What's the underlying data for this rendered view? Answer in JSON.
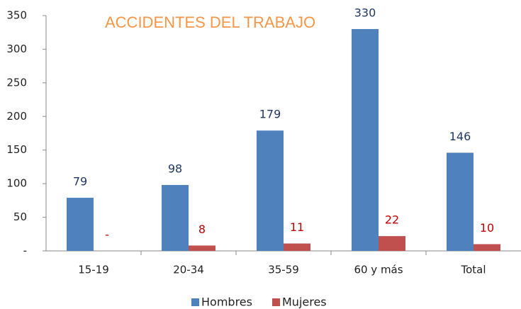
{
  "chart_data": {
    "type": "bar",
    "title": "ACCIDENTES DEL TRABAJO",
    "categories": [
      "15-19",
      "20-34",
      "35-59",
      "60 y más",
      "Total"
    ],
    "series": [
      {
        "name": "Hombres",
        "color": "#4f81bd",
        "values": [
          79,
          98,
          179,
          330,
          146
        ]
      },
      {
        "name": "Mujeres",
        "color": "#c0504d",
        "values": [
          0,
          8,
          11,
          22,
          10
        ],
        "value_labels": [
          "-",
          "8",
          "11",
          "22",
          "10"
        ]
      }
    ],
    "ylim": [
      0,
      350
    ],
    "yticks": [
      {
        "value": 0,
        "label": "-"
      },
      50,
      100,
      150,
      200,
      250,
      300,
      350
    ],
    "grid": false,
    "legend": "bottom"
  }
}
